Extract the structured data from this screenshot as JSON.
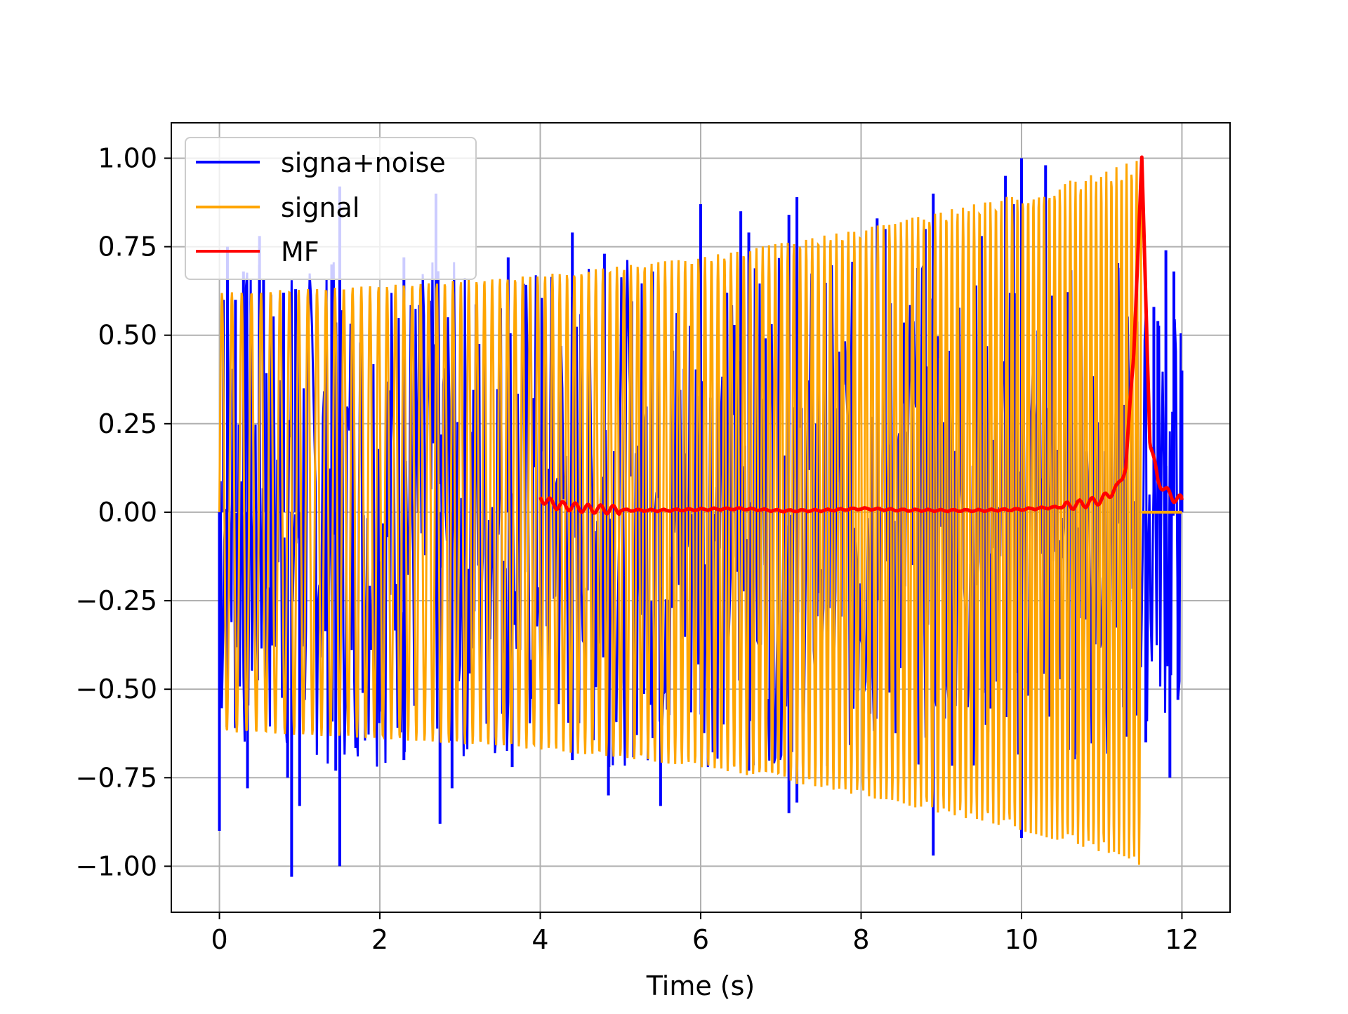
{
  "chart_data": {
    "type": "line",
    "xlabel": "Time (s)",
    "ylabel": "",
    "xlim": [
      -0.6,
      12.6
    ],
    "ylim": [
      -1.13,
      1.1
    ],
    "xticks": [
      0,
      2,
      4,
      6,
      8,
      10,
      12
    ],
    "xtick_labels": [
      "0",
      "2",
      "4",
      "6",
      "8",
      "10",
      "12"
    ],
    "yticks": [
      -1.0,
      -0.75,
      -0.5,
      -0.25,
      0.0,
      0.25,
      0.5,
      0.75,
      1.0
    ],
    "ytick_labels": [
      "−1.00",
      "−0.75",
      "−0.50",
      "−0.25",
      "0.00",
      "0.25",
      "0.50",
      "0.75",
      "1.00"
    ],
    "grid": true,
    "legend_position": "top-left",
    "series": [
      {
        "name": "signa+noise",
        "color": "#0000ff",
        "description": "noisy chirp; visible spikes beyond signal envelope",
        "spikes": [
          [
            0.0,
            -0.9
          ],
          [
            0.05,
            0.6
          ],
          [
            0.1,
            0.75
          ],
          [
            0.2,
            0.6
          ],
          [
            0.3,
            0.68
          ],
          [
            0.35,
            -0.78
          ],
          [
            0.5,
            0.78
          ],
          [
            0.55,
            0.66
          ],
          [
            0.8,
            0.62
          ],
          [
            0.85,
            -0.75
          ],
          [
            0.9,
            -1.03
          ],
          [
            0.95,
            0.63
          ],
          [
            1.0,
            -0.83
          ],
          [
            1.4,
            0.7
          ],
          [
            1.5,
            0.92
          ],
          [
            1.45,
            -0.73
          ],
          [
            1.5,
            -1.0
          ],
          [
            2.3,
            0.72
          ],
          [
            2.3,
            -0.7
          ],
          [
            2.7,
            0.9
          ],
          [
            2.75,
            -0.88
          ],
          [
            2.9,
            -0.78
          ],
          [
            3.6,
            0.72
          ],
          [
            3.65,
            -0.72
          ],
          [
            4.4,
            0.79
          ],
          [
            4.4,
            -0.7
          ],
          [
            4.8,
            0.73
          ],
          [
            4.85,
            -0.8
          ],
          [
            5.4,
            0.68
          ],
          [
            5.5,
            -0.83
          ],
          [
            6.0,
            0.87
          ],
          [
            6.5,
            0.85
          ],
          [
            6.6,
            0.79
          ],
          [
            6.6,
            -0.73
          ],
          [
            7.1,
            0.84
          ],
          [
            7.2,
            0.89
          ],
          [
            7.1,
            -0.85
          ],
          [
            7.2,
            -0.82
          ],
          [
            8.2,
            0.83
          ],
          [
            8.3,
            0.8
          ],
          [
            8.8,
            0.8
          ],
          [
            8.9,
            0.9
          ],
          [
            8.9,
            -0.97
          ],
          [
            9.5,
            0.78
          ],
          [
            9.8,
            0.95
          ],
          [
            9.9,
            0.87
          ],
          [
            10.0,
            1.0
          ],
          [
            10.0,
            -0.92
          ],
          [
            10.3,
            0.98
          ],
          [
            11.55,
            -0.65
          ],
          [
            11.65,
            0.58
          ],
          [
            11.7,
            0.54
          ],
          [
            11.8,
            0.74
          ],
          [
            11.9,
            0.68
          ],
          [
            11.85,
            -0.75
          ],
          [
            11.95,
            -0.53
          ],
          [
            12.0,
            0.4
          ]
        ]
      },
      {
        "name": "signal",
        "color": "#ffa500",
        "description": "chirp with growing amplitude, ends at t=11.5",
        "envelope": [
          [
            0.0,
            0.62
          ],
          [
            2.0,
            0.64
          ],
          [
            4.0,
            0.67
          ],
          [
            6.0,
            0.72
          ],
          [
            8.0,
            0.8
          ],
          [
            9.0,
            0.85
          ],
          [
            10.0,
            0.9
          ],
          [
            11.0,
            0.96
          ],
          [
            11.5,
            1.0
          ]
        ],
        "end_time": 11.5,
        "after_end": [
          [
            11.5,
            0.0
          ],
          [
            12.0,
            0.0
          ]
        ]
      },
      {
        "name": "MF",
        "color": "#ff0000",
        "description": "matched filter output, peak at t=11.5",
        "points": [
          [
            4.0,
            0.04
          ],
          [
            4.2,
            0.02
          ],
          [
            4.4,
            0.015
          ],
          [
            4.6,
            0.01
          ],
          [
            4.8,
            0.008
          ],
          [
            5.0,
            0.006
          ],
          [
            5.5,
            0.005
          ],
          [
            6.0,
            0.008
          ],
          [
            6.5,
            0.01
          ],
          [
            7.0,
            0.004
          ],
          [
            7.5,
            0.005
          ],
          [
            8.0,
            0.01
          ],
          [
            8.5,
            0.006
          ],
          [
            9.0,
            0.005
          ],
          [
            9.5,
            0.005
          ],
          [
            10.0,
            0.008
          ],
          [
            10.5,
            0.015
          ],
          [
            10.8,
            0.025
          ],
          [
            11.0,
            0.035
          ],
          [
            11.2,
            0.07
          ],
          [
            11.3,
            0.13
          ],
          [
            11.4,
            0.45
          ],
          [
            11.5,
            1.0
          ],
          [
            11.6,
            0.2
          ],
          [
            11.7,
            0.09
          ],
          [
            11.8,
            0.06
          ],
          [
            11.9,
            0.04
          ],
          [
            12.0,
            0.035
          ]
        ]
      }
    ]
  }
}
